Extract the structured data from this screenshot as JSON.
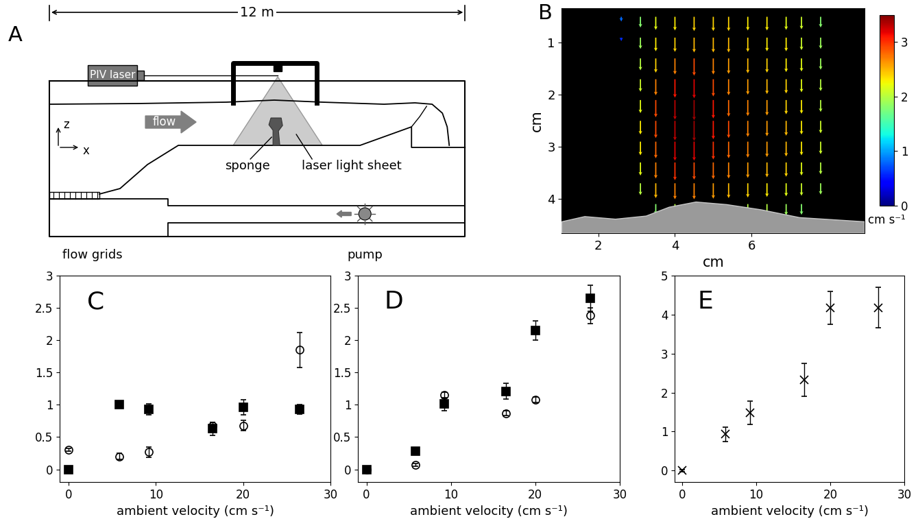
{
  "diagram": {
    "label": "A",
    "length": "12 m",
    "laser": "PIV laser",
    "flow": "flow",
    "sponge": "sponge",
    "sheet": "laser light sheet",
    "grids": "flow grids",
    "pump": "pump",
    "z": "z",
    "x": "x"
  },
  "chart_data": [
    {
      "type": "vector_field",
      "title": "B",
      "x_label": "cm",
      "y_label": "cm",
      "x": [
        2.6,
        3.1,
        3.5,
        4.0,
        4.5,
        5.0,
        5.4,
        5.9,
        6.4,
        6.9,
        7.3,
        7.8
      ],
      "y": [
        0.5,
        0.9,
        1.3,
        1.7,
        2.1,
        2.5,
        2.9,
        3.3,
        3.7,
        4.1
      ],
      "speed": [
        [
          0.8,
          1.8,
          2.2,
          2.3,
          2.4,
          2.4,
          2.4,
          2.3,
          2.3,
          2.2,
          2.1,
          1.8
        ],
        [
          0.6,
          1.9,
          2.3,
          2.4,
          2.5,
          2.5,
          2.5,
          2.4,
          2.3,
          2.3,
          2.1,
          1.9
        ],
        [
          null,
          2.0,
          2.4,
          2.7,
          2.9,
          2.7,
          2.6,
          2.5,
          2.4,
          2.3,
          2.2,
          1.9
        ],
        [
          null,
          2.1,
          2.7,
          3.1,
          3.2,
          2.9,
          2.7,
          2.6,
          2.5,
          2.4,
          2.2,
          2.0
        ],
        [
          null,
          2.2,
          2.9,
          3.3,
          3.4,
          3.1,
          2.8,
          2.7,
          2.6,
          2.4,
          2.3,
          2.0
        ],
        [
          null,
          2.3,
          2.9,
          3.3,
          3.4,
          3.1,
          2.9,
          2.7,
          2.6,
          2.5,
          2.3,
          2.1
        ],
        [
          null,
          2.3,
          2.8,
          3.2,
          3.2,
          3.0,
          2.8,
          2.7,
          2.6,
          2.5,
          2.3,
          2.1
        ],
        [
          null,
          2.2,
          2.7,
          3.0,
          2.9,
          2.8,
          2.7,
          2.6,
          2.5,
          2.4,
          2.2,
          2.0
        ],
        [
          null,
          2.0,
          2.5,
          2.7,
          2.7,
          2.6,
          2.5,
          2.4,
          2.3,
          2.2,
          2.1,
          1.9
        ],
        [
          null,
          null,
          1.8,
          2.0,
          2.0,
          null,
          null,
          2.0,
          2.0,
          1.9,
          1.8,
          null
        ]
      ],
      "xlim": [
        1.05,
        8.95
      ],
      "ylim": [
        4.66,
        0.34
      ],
      "xticks": [
        2,
        4,
        6
      ],
      "yticks": [
        1,
        2,
        3,
        4
      ],
      "colorbar_label": "cm s⁻¹",
      "colorbar_range": [
        0,
        3.5
      ],
      "colorbar_ticks": [
        0,
        1,
        2,
        3
      ]
    },
    {
      "type": "scatter",
      "title": "C",
      "x_label": "ambient velocity (cm s⁻¹)",
      "x": [
        0,
        5.8,
        9.2,
        16.5,
        20,
        26.5
      ],
      "series": [
        {
          "marker": "square",
          "color": "#000000",
          "values": [
            0,
            1.0,
            0.93,
            0.63,
            0.96,
            0.93
          ],
          "errors": [
            0.02,
            0.03,
            0.08,
            0.1,
            0.12,
            0.07
          ]
        },
        {
          "marker": "circle",
          "color": "#000000",
          "values": [
            0.3,
            0.2,
            0.27,
            0.68,
            0.68,
            1.85
          ],
          "errors": [
            0.02,
            0.05,
            0.08,
            0.05,
            0.08,
            0.27
          ]
        }
      ],
      "xlim": [
        -1,
        30
      ],
      "ylim": [
        -0.2,
        3
      ],
      "xticks": [
        0,
        10,
        20,
        30
      ],
      "yticks": [
        0,
        0.5,
        1,
        1.5,
        2,
        2.5,
        3
      ]
    },
    {
      "type": "scatter",
      "title": "D",
      "x_label": "ambient velocity (cm s⁻¹)",
      "x": [
        0,
        5.8,
        9.2,
        16.5,
        20,
        26.5
      ],
      "series": [
        {
          "marker": "square",
          "color": "#000000",
          "values": [
            0,
            0.28,
            1.01,
            1.21,
            2.15,
            2.65
          ],
          "errors": [
            0.02,
            0.03,
            0.1,
            0.12,
            0.15,
            0.2
          ]
        },
        {
          "marker": "circle",
          "color": "#000000",
          "values": [
            0,
            0.07,
            1.15,
            0.87,
            1.08,
            2.38
          ],
          "errors": [
            0.02,
            0.02,
            0.05,
            0.04,
            0.04,
            0.12
          ]
        }
      ],
      "xlim": [
        -1,
        30
      ],
      "ylim": [
        -0.2,
        3
      ],
      "xticks": [
        0,
        10,
        20,
        30
      ],
      "yticks": [
        0,
        0.5,
        1,
        1.5,
        2,
        2.5,
        3
      ]
    },
    {
      "type": "scatter",
      "title": "E",
      "x_label": "ambient velocity (cm s⁻¹)",
      "x": [
        0,
        5.8,
        9.2,
        16.5,
        20,
        26.5
      ],
      "series": [
        {
          "marker": "x",
          "color": "#000000",
          "values": [
            0,
            0.93,
            1.48,
            2.33,
            4.17,
            4.18
          ],
          "errors": [
            0.02,
            0.18,
            0.3,
            0.42,
            0.42,
            0.52
          ]
        }
      ],
      "xlim": [
        -1,
        30
      ],
      "ylim": [
        -0.3,
        5
      ],
      "xticks": [
        0,
        10,
        20,
        30
      ],
      "yticks": [
        0,
        1,
        2,
        3,
        4,
        5
      ]
    }
  ]
}
